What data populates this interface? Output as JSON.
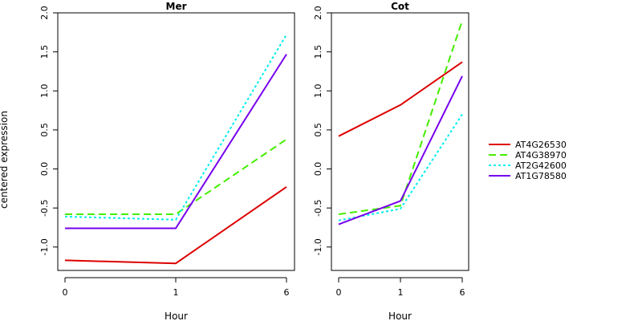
{
  "figure": {
    "ylabel": "centered expression",
    "xlabel": "Hour"
  },
  "legend": [
    {
      "name": "AT4G26530",
      "color": "#dd0000",
      "dash": "solid"
    },
    {
      "name": "AT4G38970",
      "color": "#44ee00",
      "dash": "dashed"
    },
    {
      "name": "AT2G42600",
      "color": "#00eeee",
      "dash": "dotted"
    },
    {
      "name": "AT1G78580",
      "color": "#7700ee",
      "dash": "solid"
    }
  ],
  "chart_data": [
    {
      "type": "line",
      "title": "Mer",
      "xlabel": "Hour",
      "ylabel": "centered expression",
      "categories": [
        "0",
        "1",
        "6"
      ],
      "ylim": [
        -1.3,
        2.0
      ],
      "yticks": [
        "-1.0",
        "-0.5",
        "0.0",
        "0.5",
        "1.0",
        "1.5",
        "2.0"
      ],
      "grid": false,
      "series": [
        {
          "name": "AT4G26530",
          "values": [
            -1.17,
            -1.21,
            -0.23
          ]
        },
        {
          "name": "AT4G38970",
          "values": [
            -0.58,
            -0.58,
            0.38
          ]
        },
        {
          "name": "AT2G42600",
          "values": [
            -0.61,
            -0.65,
            1.72
          ]
        },
        {
          "name": "AT1G78580",
          "values": [
            -0.76,
            -0.76,
            1.47
          ]
        }
      ]
    },
    {
      "type": "line",
      "title": "Cot",
      "xlabel": "Hour",
      "ylabel": "",
      "categories": [
        "0",
        "1",
        "6"
      ],
      "ylim": [
        -1.3,
        2.0
      ],
      "yticks": [
        "-1.0",
        "-0.5",
        "0.0",
        "0.5",
        "1.0",
        "1.5",
        "2.0"
      ],
      "grid": false,
      "series": [
        {
          "name": "AT4G26530",
          "values": [
            0.42,
            0.82,
            1.37
          ]
        },
        {
          "name": "AT4G38970",
          "values": [
            -0.58,
            -0.47,
            1.9
          ]
        },
        {
          "name": "AT2G42600",
          "values": [
            -0.66,
            -0.51,
            0.7
          ]
        },
        {
          "name": "AT1G78580",
          "values": [
            -0.71,
            -0.41,
            1.19
          ]
        }
      ]
    }
  ]
}
